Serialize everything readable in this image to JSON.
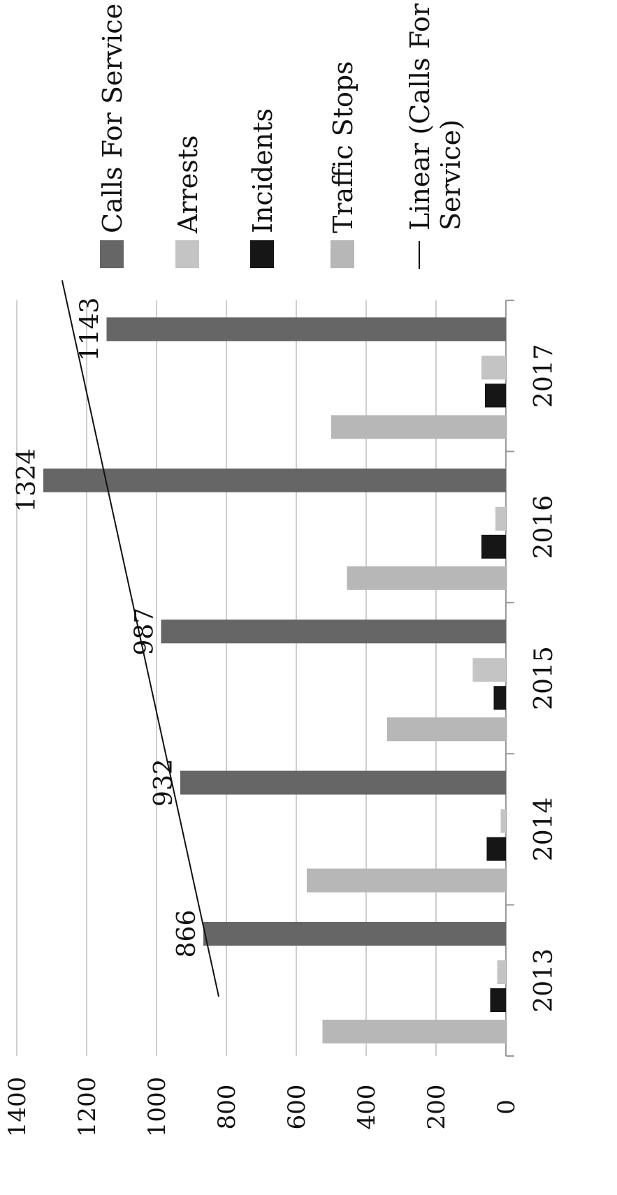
{
  "chart_data": {
    "type": "bar",
    "orientation": "vertical, image rotated 90 degrees counter-clockwise",
    "categories": [
      "2013",
      "2014",
      "2015",
      "2016",
      "2017"
    ],
    "series": [
      {
        "name": "Calls For Service",
        "values": [
          866,
          932,
          987,
          1324,
          1143
        ],
        "color": "#666666",
        "data_labels": [
          "866",
          "932",
          "987",
          "1324",
          "1143"
        ]
      },
      {
        "name": "Arrests",
        "values": [
          25,
          15,
          95,
          30,
          70
        ],
        "color": "#c4c4c4"
      },
      {
        "name": "Incidents",
        "values": [
          45,
          55,
          35,
          70,
          60
        ],
        "color": "#161616"
      },
      {
        "name": "Traffic Stops",
        "values": [
          525,
          570,
          340,
          455,
          500
        ],
        "color": "#b7b7b7"
      }
    ],
    "trendline": {
      "name": "Linear (Calls For Service)",
      "of_series": "Calls For Service",
      "type": "linear"
    },
    "y_ticks": [
      "0",
      "200",
      "400",
      "600",
      "800",
      "1000",
      "1200",
      "1400"
    ],
    "ylim": [
      0,
      1400
    ],
    "grid": true,
    "legend": "right",
    "title": "",
    "xlabel": "",
    "ylabel": ""
  }
}
